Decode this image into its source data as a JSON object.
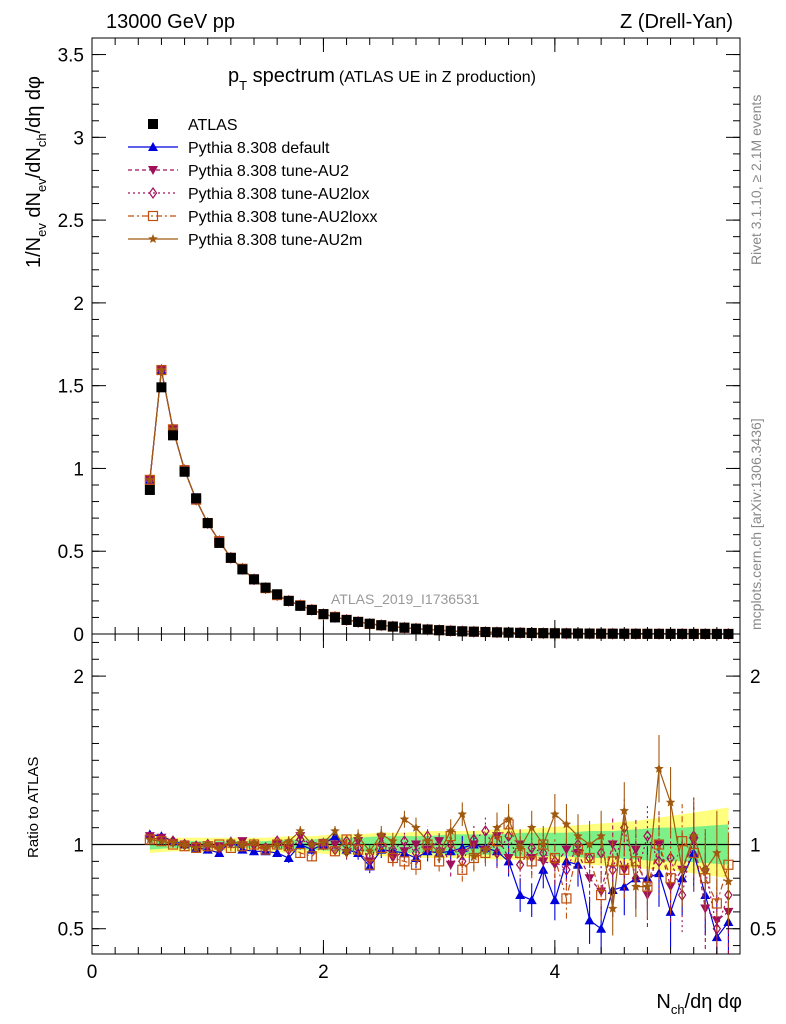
{
  "header": {
    "left": "13000 GeV pp",
    "right": "Z (Drell-Yan)"
  },
  "title": {
    "main": "p",
    "main_sub": "T",
    "main_rest": " spectrum",
    "paren": "(ATLAS UE in Z production)"
  },
  "side": {
    "rivet": "Rivet 3.1.10, ≥ 2.1M events",
    "mcplots": "mcplots.cern.ch [arXiv:1306.3436]"
  },
  "watermark": "ATLAS_2019_I1736531",
  "axis": {
    "ylabel_top": "1/N_ev dN_ev/dN_ch/dη dφ",
    "ylabel_bottom": "Ratio to ATLAS",
    "xlabel": "N_ch/dη dφ"
  },
  "legend": [
    {
      "label": "ATLAS",
      "color": "#000000",
      "marker": "square-filled",
      "dash": ""
    },
    {
      "label": "Pythia 8.308 default",
      "color": "#0000dd",
      "marker": "triangle-up",
      "dash": ""
    },
    {
      "label": "Pythia 8.308 tune-AU2",
      "color": "#a0105a",
      "marker": "triangle-down",
      "dash": "4,3"
    },
    {
      "label": "Pythia 8.308 tune-AU2lox",
      "color": "#a0105a",
      "marker": "diamond-open",
      "dash": "2,3"
    },
    {
      "label": "Pythia 8.308 tune-AU2loxx",
      "color": "#c05010",
      "marker": "square-open",
      "dash": "6,3,2,3"
    },
    {
      "label": "Pythia 8.308 tune-AU2m",
      "color": "#a05a10",
      "marker": "star",
      "dash": ""
    }
  ],
  "chart_data": {
    "type": "line",
    "x_range": [
      0,
      5.6
    ],
    "x_ticks": [
      "0",
      "2",
      "4"
    ],
    "x_tick_values": [
      0,
      2,
      4
    ],
    "top": {
      "y_range": [
        0,
        3.6
      ],
      "y_ticks": [
        "0",
        "0.5",
        "1",
        "1.5",
        "2",
        "2.5",
        "3",
        "3.5"
      ],
      "y_tick_values": [
        0,
        0.5,
        1,
        1.5,
        2,
        2.5,
        3,
        3.5
      ],
      "x": [
        0.5,
        0.6,
        0.7,
        0.8,
        0.9,
        1.0,
        1.1,
        1.2,
        1.3,
        1.4,
        1.5,
        1.6,
        1.7,
        1.8,
        1.9,
        2.0,
        2.1,
        2.2,
        2.3,
        2.4,
        2.5,
        2.6,
        2.7,
        2.8,
        2.9,
        3.0,
        3.1,
        3.2,
        3.3,
        3.4,
        3.5,
        3.6,
        3.7,
        3.8,
        3.9,
        4.0,
        4.1,
        4.2,
        4.3,
        4.4,
        4.5,
        4.6,
        4.7,
        4.8,
        4.9,
        5.0,
        5.1,
        5.2,
        5.3,
        5.4,
        5.5
      ],
      "atlas": [
        0.87,
        1.49,
        1.2,
        0.98,
        0.82,
        0.67,
        0.55,
        0.46,
        0.39,
        0.33,
        0.28,
        0.24,
        0.2,
        0.17,
        0.145,
        0.12,
        0.1,
        0.085,
        0.073,
        0.062,
        0.053,
        0.045,
        0.038,
        0.032,
        0.027,
        0.023,
        0.019,
        0.016,
        0.014,
        0.012,
        0.01,
        0.0085,
        0.007,
        0.006,
        0.005,
        0.0042,
        0.0035,
        0.003,
        0.0025,
        0.0021,
        0.0018,
        0.0015,
        0.0012,
        0.001,
        0.0008,
        0.0007,
        0.0006,
        0.0005,
        0.0004,
        0.0003,
        0.0003
      ],
      "mc_scale": [
        1.07,
        1.07,
        1.03,
        1.01,
        0.99,
        1.0,
        1.02,
        1.0,
        1.01,
        1.0,
        0.99,
        0.98,
        1.0,
        1.02,
        1.01,
        1.0,
        1.03,
        1.0,
        1.0,
        0.98,
        1.0,
        1.0,
        1.0,
        1.02,
        1.0,
        1.0,
        1.0,
        1.0,
        1.0,
        1.0,
        1.0,
        1.0,
        1.0,
        1.0,
        1.0,
        1.0,
        1.0,
        1.0,
        1.0,
        1.0,
        1.0,
        1.0,
        1.0,
        1.0,
        1.0,
        1.0,
        1.0,
        1.0,
        1.0,
        1.0,
        1.0
      ]
    },
    "bottom": {
      "y_range": [
        0.35,
        2.25
      ],
      "y_ticks": [
        "0.5",
        "1",
        "2"
      ],
      "y_tick_values": [
        0.5,
        1,
        2
      ],
      "reference_line": 1,
      "band_x": [
        0.5,
        0.7,
        0.9,
        1.1,
        1.3,
        1.5,
        1.7,
        1.9,
        2.1,
        2.3,
        2.5,
        2.7,
        2.9,
        3.1,
        3.3,
        3.5,
        3.7,
        3.9,
        4.1,
        4.3,
        4.5,
        4.7,
        4.9,
        5.1,
        5.3,
        5.5
      ],
      "band_stat_low": [
        0.97,
        0.98,
        0.98,
        0.98,
        0.98,
        0.98,
        0.97,
        0.97,
        0.96,
        0.96,
        0.95,
        0.95,
        0.95,
        0.94,
        0.94,
        0.94,
        0.93,
        0.93,
        0.93,
        0.92,
        0.92,
        0.91,
        0.9,
        0.9,
        0.89,
        0.88
      ],
      "band_stat_high": [
        1.03,
        1.02,
        1.02,
        1.02,
        1.02,
        1.02,
        1.03,
        1.03,
        1.04,
        1.04,
        1.05,
        1.05,
        1.05,
        1.06,
        1.06,
        1.06,
        1.07,
        1.07,
        1.07,
        1.08,
        1.08,
        1.09,
        1.1,
        1.1,
        1.11,
        1.12
      ],
      "band_tot_low": [
        0.95,
        0.96,
        0.96,
        0.96,
        0.96,
        0.96,
        0.95,
        0.95,
        0.94,
        0.94,
        0.93,
        0.93,
        0.92,
        0.92,
        0.92,
        0.91,
        0.91,
        0.9,
        0.89,
        0.88,
        0.87,
        0.86,
        0.85,
        0.84,
        0.82,
        0.8
      ],
      "band_tot_high": [
        1.05,
        1.04,
        1.04,
        1.04,
        1.04,
        1.04,
        1.05,
        1.05,
        1.06,
        1.06,
        1.07,
        1.07,
        1.08,
        1.08,
        1.08,
        1.09,
        1.09,
        1.1,
        1.11,
        1.12,
        1.13,
        1.14,
        1.16,
        1.18,
        1.2,
        1.22
      ],
      "x": [
        0.5,
        0.6,
        0.7,
        0.8,
        0.9,
        1.0,
        1.1,
        1.2,
        1.3,
        1.4,
        1.5,
        1.6,
        1.7,
        1.8,
        1.9,
        2.0,
        2.1,
        2.2,
        2.3,
        2.4,
        2.5,
        2.6,
        2.7,
        2.8,
        2.9,
        3.0,
        3.1,
        3.2,
        3.3,
        3.4,
        3.5,
        3.6,
        3.7,
        3.8,
        3.9,
        4.0,
        4.1,
        4.2,
        4.3,
        4.4,
        4.5,
        4.6,
        4.7,
        4.8,
        4.9,
        5.0,
        5.1,
        5.2,
        5.3,
        5.4,
        5.5
      ],
      "series": [
        {
          "name": "Pythia 8.308 default",
          "err": [
            0.02,
            0.02,
            0.02,
            0.02,
            0.02,
            0.02,
            0.02,
            0.02,
            0.02,
            0.02,
            0.02,
            0.02,
            0.03,
            0.03,
            0.03,
            0.03,
            0.03,
            0.04,
            0.04,
            0.04,
            0.05,
            0.05,
            0.05,
            0.06,
            0.06,
            0.06,
            0.07,
            0.07,
            0.08,
            0.08,
            0.09,
            0.09,
            0.1,
            0.1,
            0.11,
            0.12,
            0.12,
            0.13,
            0.14,
            0.15,
            0.16,
            0.17,
            0.18,
            0.19,
            0.2,
            0.21,
            0.22,
            0.23,
            0.24,
            0.25,
            0.26
          ],
          "y": [
            1.06,
            1.05,
            1.02,
            1.0,
            0.98,
            0.97,
            0.95,
            1.02,
            0.97,
            0.96,
            0.96,
            0.95,
            0.92,
            1.0,
            0.97,
            1.0,
            1.05,
            0.97,
            0.95,
            0.87,
            0.97,
            0.96,
            0.95,
            0.92,
            0.96,
            0.95,
            0.96,
            0.98,
            1.0,
            0.98,
            0.96,
            0.9,
            0.7,
            0.67,
            0.85,
            0.67,
            0.9,
            0.88,
            0.55,
            0.5,
            0.73,
            0.75,
            0.8,
            0.8,
            0.83,
            0.6,
            0.8,
            0.95,
            0.7,
            0.45,
            0.54
          ]
        },
        {
          "name": "Pythia 8.308 tune-AU2",
          "err": [
            0.02,
            0.02,
            0.02,
            0.02,
            0.02,
            0.02,
            0.02,
            0.02,
            0.02,
            0.02,
            0.02,
            0.02,
            0.03,
            0.03,
            0.03,
            0.03,
            0.03,
            0.04,
            0.04,
            0.04,
            0.05,
            0.05,
            0.05,
            0.06,
            0.06,
            0.06,
            0.07,
            0.07,
            0.08,
            0.08,
            0.09,
            0.09,
            0.1,
            0.1,
            0.11,
            0.12,
            0.12,
            0.13,
            0.14,
            0.15,
            0.16,
            0.17,
            0.18,
            0.19,
            0.2,
            0.21,
            0.22,
            0.23,
            0.24,
            0.25,
            0.26
          ],
          "y": [
            1.05,
            1.04,
            1.01,
            1.0,
            0.99,
            0.98,
            0.99,
            1.0,
            1.02,
            0.99,
            0.97,
            1.0,
            0.98,
            1.05,
            0.99,
            1.01,
            1.0,
            0.95,
            1.02,
            0.9,
            1.04,
            0.92,
            0.96,
            1.0,
            0.97,
            1.02,
            0.88,
            0.95,
            1.0,
            0.97,
            1.05,
            0.92,
            1.0,
            0.92,
            0.9,
            0.88,
            0.97,
            0.95,
            0.8,
            0.72,
            1.0,
            0.85,
            0.97,
            0.7,
            1.0,
            0.75,
            0.85,
            1.02,
            0.62,
            0.55,
            0.6
          ]
        },
        {
          "name": "Pythia 8.308 tune-AU2lox",
          "err": [
            0.02,
            0.02,
            0.02,
            0.02,
            0.02,
            0.02,
            0.02,
            0.02,
            0.02,
            0.02,
            0.02,
            0.02,
            0.03,
            0.03,
            0.03,
            0.03,
            0.03,
            0.04,
            0.04,
            0.04,
            0.05,
            0.05,
            0.05,
            0.06,
            0.06,
            0.06,
            0.07,
            0.07,
            0.08,
            0.08,
            0.09,
            0.09,
            0.1,
            0.1,
            0.11,
            0.12,
            0.12,
            0.13,
            0.14,
            0.15,
            0.16,
            0.17,
            0.18,
            0.19,
            0.2,
            0.21,
            0.22,
            0.23,
            0.24,
            0.25,
            0.26
          ],
          "y": [
            1.04,
            1.03,
            1.02,
            1.0,
            0.99,
            1.0,
            0.98,
            1.01,
            1.0,
            1.0,
            0.98,
            1.02,
            0.97,
            1.03,
            1.0,
            1.0,
            0.97,
            1.02,
            0.98,
            0.93,
            1.0,
            0.97,
            1.02,
            0.95,
            1.05,
            0.96,
            1.0,
            0.9,
            1.03,
            1.08,
            0.95,
            1.05,
            0.88,
            0.98,
            0.95,
            0.9,
            0.85,
            1.0,
            0.92,
            0.95,
            0.85,
            1.1,
            0.8,
            1.05,
            0.9,
            0.92,
            0.7,
            1.05,
            0.85,
            0.5,
            0.7
          ]
        },
        {
          "name": "Pythia 8.308 tune-AU2loxx",
          "err": [
            0.02,
            0.02,
            0.02,
            0.02,
            0.02,
            0.02,
            0.02,
            0.02,
            0.02,
            0.02,
            0.02,
            0.02,
            0.03,
            0.03,
            0.03,
            0.03,
            0.03,
            0.04,
            0.04,
            0.04,
            0.05,
            0.05,
            0.05,
            0.06,
            0.06,
            0.06,
            0.07,
            0.07,
            0.08,
            0.08,
            0.09,
            0.09,
            0.1,
            0.1,
            0.11,
            0.12,
            0.12,
            0.13,
            0.14,
            0.15,
            0.16,
            0.17,
            0.18,
            0.19,
            0.2,
            0.21,
            0.22,
            0.23,
            0.24,
            0.25,
            0.26
          ],
          "y": [
            1.03,
            1.02,
            1.0,
            0.99,
            0.98,
            0.99,
            1.0,
            0.98,
            0.99,
            1.0,
            0.97,
            1.0,
            0.99,
            0.95,
            0.93,
            1.0,
            0.96,
            1.03,
            0.97,
            0.88,
            0.98,
            0.92,
            0.9,
            0.88,
            1.0,
            0.9,
            1.05,
            0.85,
            0.92,
            0.95,
            1.02,
            1.12,
            0.95,
            0.9,
            1.0,
            0.92,
            0.68,
            0.97,
            0.92,
            0.7,
            0.9,
            0.85,
            0.9,
            0.75,
            1.0,
            0.8,
            1.02,
            0.95,
            0.8,
            0.65,
            0.88
          ]
        },
        {
          "name": "Pythia 8.308 tune-AU2m",
          "err": [
            0.02,
            0.02,
            0.02,
            0.02,
            0.02,
            0.02,
            0.02,
            0.02,
            0.02,
            0.02,
            0.02,
            0.02,
            0.03,
            0.03,
            0.03,
            0.03,
            0.03,
            0.04,
            0.04,
            0.04,
            0.05,
            0.05,
            0.05,
            0.06,
            0.06,
            0.06,
            0.07,
            0.07,
            0.08,
            0.08,
            0.09,
            0.09,
            0.1,
            0.1,
            0.11,
            0.12,
            0.12,
            0.13,
            0.14,
            0.15,
            0.16,
            0.17,
            0.18,
            0.19,
            0.2,
            0.21,
            0.22,
            0.23,
            0.24,
            0.25,
            0.26
          ],
          "y": [
            1.03,
            1.02,
            1.01,
            1.0,
            0.98,
            1.0,
            0.98,
            1.02,
            1.0,
            1.01,
            0.98,
            1.0,
            1.02,
            1.08,
            1.0,
            1.01,
            1.08,
            0.96,
            1.05,
            0.96,
            1.06,
            1.02,
            1.15,
            1.1,
            1.02,
            0.95,
            1.08,
            1.18,
            0.93,
            0.97,
            1.1,
            1.15,
            0.98,
            1.1,
            1.0,
            1.18,
            1.12,
            1.05,
            1.0,
            1.05,
            0.62,
            1.2,
            0.75,
            0.75,
            1.45,
            1.25,
            0.85,
            1.05,
            0.85,
            0.95,
            0.78
          ]
        }
      ]
    }
  }
}
